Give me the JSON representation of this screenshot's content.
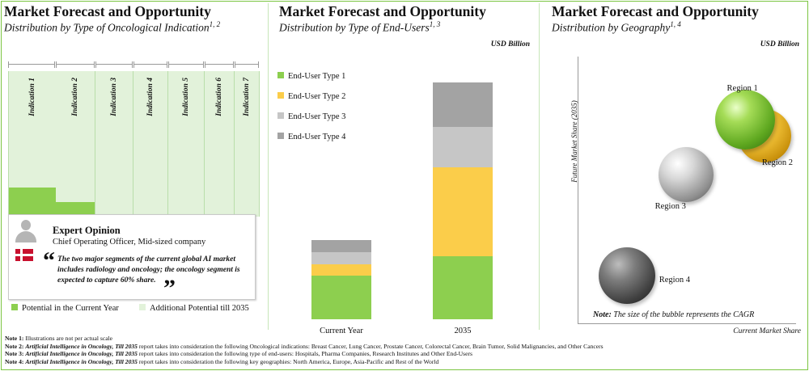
{
  "colors": {
    "green": "#8dcf4f",
    "light_green": "#e2f2da",
    "yellow": "#fbcd4a",
    "light_gray": "#c6c6c6",
    "dark_gray": "#a3a3a3",
    "border": "#7cc542"
  },
  "panel1": {
    "title": "Market Forecast and Opportunity",
    "subtitle": "Distribution by Type of Oncological Indication",
    "subtitle_sup": "1, 2",
    "legend": [
      "Potential in the Current Year",
      "Additional Potential till 2035"
    ],
    "expert": {
      "title": "Expert Opinion",
      "role": "Chief Operating Officer, Mid-sized company",
      "quote": "The two major segments of the current global AI market includes radiology and oncology; the oncology segment is expected to capture 60% share.",
      "open_mark": "“",
      "close_mark": "”"
    }
  },
  "chart_data": [
    {
      "type": "bar",
      "title": "Market Forecast and Opportunity",
      "subtitle": "Distribution by Type of Oncological Indication",
      "categories": [
        "Indication 1",
        "Indication 2",
        "Indication 3",
        "Indication 4",
        "Indication 5",
        "Indication 6",
        "Indication 7"
      ],
      "widths": [
        58,
        48,
        46,
        42,
        44,
        36,
        30
      ],
      "series": [
        {
          "name": "Potential in the Current Year",
          "values": [
            0.2,
            0.1,
            0,
            0,
            0,
            0,
            0
          ]
        },
        {
          "name": "Additional Potential till 2035",
          "values": [
            1,
            1,
            1,
            1,
            1,
            1,
            1
          ]
        }
      ]
    },
    {
      "type": "bar",
      "stacked": true,
      "title": "Market Forecast and Opportunity",
      "subtitle": "Distribution by Type of End-Users",
      "subtitle_sup": "1, 3",
      "unit": "USD Billion",
      "categories": [
        "Current Year",
        "2035"
      ],
      "series": [
        {
          "name": "End-User Type 1",
          "values": [
            55,
            80
          ]
        },
        {
          "name": "End-User Type 2",
          "values": [
            15,
            112
          ]
        },
        {
          "name": "End-User Type 3",
          "values": [
            15,
            52
          ]
        },
        {
          "name": "End-User Type 4",
          "values": [
            15,
            56
          ]
        }
      ],
      "ylim": [
        0,
        310
      ]
    },
    {
      "type": "scatter",
      "title": "Market Forecast and Opportunity",
      "subtitle": "Distribution by Geography",
      "subtitle_sup": "1, 4",
      "unit": "USD Billion",
      "xlabel": "Current Market Share",
      "ylabel": "Future Market Share (2035)",
      "note_label": "Note:",
      "note": "The size of the bubble represents the CAGR",
      "points": [
        {
          "label": "Region 1",
          "x": 0.85,
          "y": 0.85,
          "size": 1.0
        },
        {
          "label": "Region 2",
          "x": 0.95,
          "y": 0.78,
          "size": 0.9
        },
        {
          "label": "Region 3",
          "x": 0.55,
          "y": 0.62,
          "size": 0.9
        },
        {
          "label": "Region 4",
          "x": 0.25,
          "y": 0.2,
          "size": 0.9
        }
      ]
    }
  ],
  "notes": [
    {
      "label": "Note 1:",
      "report": "",
      "text": "Illustrations are not per actual scale"
    },
    {
      "label": "Note 2:",
      "report": "Artificial Intelligence in Oncology, Till 2035",
      "text": "report takes into consideration the following Oncological indications: Breast Cancer, Lung Cancer, Prostate Cancer, Colorectal Cancer, Brain Tumor, Solid Malignancies, and Other Cancers"
    },
    {
      "label": "Note 3:",
      "report": "Artificial Intelligence in Oncology, Till 2035",
      "text": "report takes into consideration the following type of end-users: Hospitals, Pharma Companies, Research Institutes and Other End-Users"
    },
    {
      "label": "Note 4:",
      "report": "Artificial Intelligence in Oncology, Till 2035",
      "text": "report takes into consideration the following key geographies: North America, Europe, Asia-Pacific and Rest of the World"
    }
  ]
}
